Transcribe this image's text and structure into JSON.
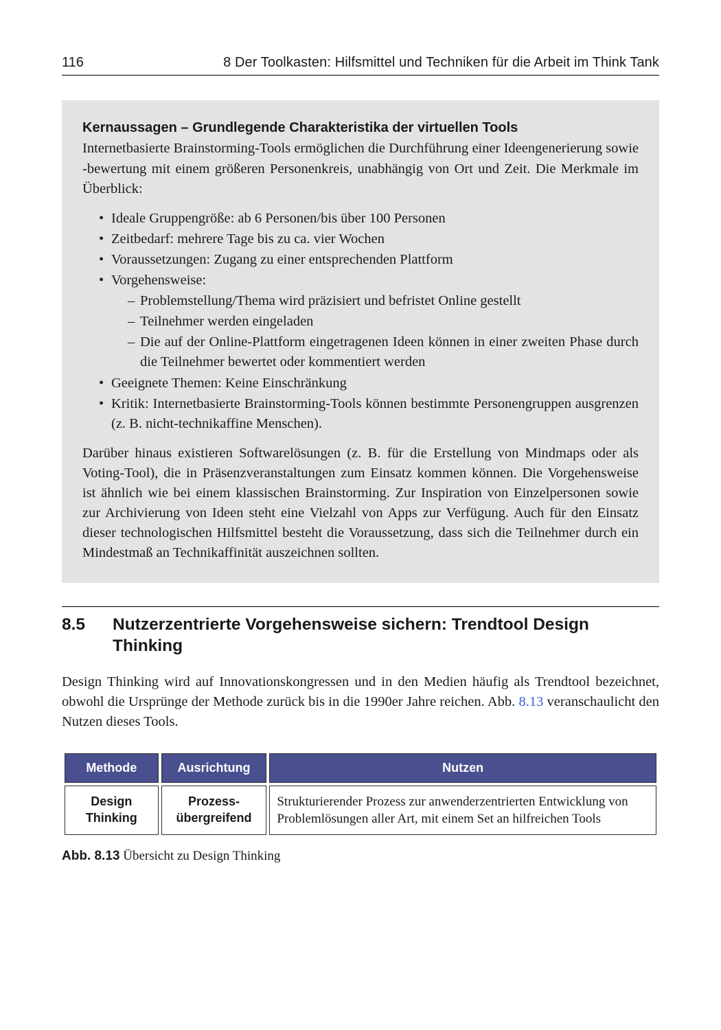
{
  "header": {
    "page_number": "116",
    "chapter_label": "8   Der Toolkasten: Hilfsmittel und Techniken für die Arbeit im Think Tank"
  },
  "box": {
    "title": "Kernaussagen – Grundlegende Charakteristika der virtuellen Tools",
    "intro": "Internetbasierte Brainstorming-Tools ermöglichen die Durchführung einer Ideengenerierung sowie -bewertung mit einem größeren Personenkreis, unabhängig von Ort und Zeit. Die Merkmale im Überblick:",
    "bullets": {
      "b0": "Ideale Gruppengröße: ab 6 Personen/bis über 100 Personen",
      "b1": "Zeitbedarf: mehrere Tage bis zu ca. vier Wochen",
      "b2": "Voraussetzungen: Zugang zu einer entsprechenden Plattform",
      "b3": "Vorgehensweise:",
      "b3_sub": {
        "s0": "Problemstellung/Thema wird präzisiert und befristet Online gestellt",
        "s1": "Teilnehmer werden eingeladen",
        "s2": "Die auf der Online-Plattform eingetragenen Ideen können in einer zweiten Phase durch die Teilnehmer bewertet oder kommentiert werden"
      },
      "b4": "Geeignete Themen: Keine Einschränkung",
      "b5": "Kritik: Internetbasierte Brainstorming-Tools können bestimmte Personengruppen ausgrenzen (z. B. nicht-technikaffine Menschen)."
    },
    "outro": "Darüber hinaus existieren Softwarelösungen (z. B. für die Erstellung von Mindmaps oder als Voting-Tool), die in Präsenzveranstaltungen zum Einsatz kommen können. Die Vorgehensweise ist ähnlich wie bei einem klassischen Brainstorming. Zur Inspiration von Einzelpersonen sowie zur Archivierung von Ideen steht eine Vielzahl von Apps zur Verfügung. Auch für den Einsatz dieser technologischen Hilfsmittel besteht die Voraussetzung, dass sich die Teilnehmer durch ein Mindestmaß an Technikaffinität auszeichnen sollten."
  },
  "section": {
    "number": "8.5",
    "title": "Nutzerzentrierte Vorgehensweise sichern: Trendtool Design Thinking",
    "para_pre": "Design Thinking wird auf Innovationskongressen und in den Medien häufig als Trendtool bezeichnet, obwohl die Ursprünge der Methode zurück bis in die 1990er Jahre reichen. Abb. ",
    "fig_ref": "8.13",
    "para_post": " veranschaulicht den Nutzen dieses Tools."
  },
  "table": {
    "columns": {
      "c0": "Methode",
      "c1": "Ausrichtung",
      "c2": "Nutzen"
    },
    "col_widths": [
      "16%",
      "18%",
      "66%"
    ],
    "header_bg": "#4a4f8f",
    "header_fg": "#ffffff",
    "row": {
      "c0_l1": "Design",
      "c0_l2": "Thinking",
      "c1_l1": "Prozess-",
      "c1_l2": "übergreifend",
      "c2": "Strukturierender Prozess zur anwenderzentrierten Entwicklung von Problemlösungen aller Art, mit einem Set an hilfreichen Tools"
    }
  },
  "caption": {
    "label": "Abb. 8.13",
    "text": "  Übersicht zu Design Thinking"
  }
}
